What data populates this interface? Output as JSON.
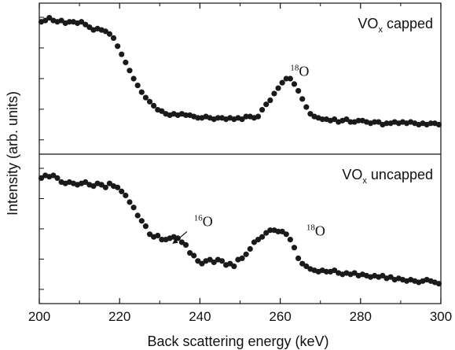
{
  "chart_data": {
    "type": "scatter",
    "xlabel": "Back scattering energy (keV)",
    "ylabel": "Intensity (arb. units)",
    "xlim": [
      200,
      300
    ],
    "x_ticks": [
      200,
      220,
      240,
      260,
      280,
      300
    ],
    "grid": false,
    "panels": [
      {
        "label": "VOx capped",
        "label_main": "VO",
        "label_sub": "x",
        "label_rest": " capped",
        "ylim": [
          0,
          1
        ],
        "annotations": [
          {
            "text_sup": "18",
            "text": "O",
            "x": 262.5,
            "y": 0.52
          }
        ],
        "x": [
          200.5,
          201.5,
          202.5,
          203.5,
          204.5,
          205.5,
          206.5,
          207.5,
          208.5,
          209.5,
          210.5,
          211.5,
          212.5,
          213.5,
          214.5,
          215.5,
          216.5,
          217.5,
          218.5,
          219.5,
          220.5,
          221.5,
          222.5,
          223.5,
          224.5,
          225.5,
          226.5,
          227.5,
          228.5,
          229.5,
          230.5,
          231.5,
          232.5,
          233.5,
          234.5,
          235.5,
          236.5,
          237.5,
          238.5,
          239.5,
          240.5,
          241.5,
          242.5,
          243.5,
          244.5,
          245.5,
          246.5,
          247.5,
          248.5,
          249.5,
          250.5,
          251.5,
          252.5,
          253.5,
          254.5,
          255.5,
          256.5,
          257.5,
          258.5,
          259.5,
          260.5,
          261.5,
          262.5,
          263.5,
          264.5,
          265.5,
          266.5,
          267.5,
          268.5,
          269.5,
          270.5,
          271.5,
          272.5,
          273.5,
          274.5,
          275.5,
          276.5,
          277.5,
          278.5,
          279.5,
          280.5,
          281.5,
          282.5,
          283.5,
          284.5,
          285.5,
          286.5,
          287.5,
          288.5,
          289.5,
          290.5,
          291.5,
          292.5,
          293.5,
          294.5,
          295.5,
          296.5,
          297.5,
          298.5,
          299.5
        ],
        "y": [
          0.92,
          0.93,
          0.95,
          0.93,
          0.92,
          0.93,
          0.91,
          0.92,
          0.92,
          0.91,
          0.92,
          0.9,
          0.88,
          0.86,
          0.87,
          0.86,
          0.85,
          0.83,
          0.8,
          0.74,
          0.68,
          0.62,
          0.56,
          0.5,
          0.45,
          0.4,
          0.36,
          0.33,
          0.3,
          0.27,
          0.26,
          0.24,
          0.23,
          0.24,
          0.23,
          0.24,
          0.23,
          0.23,
          0.22,
          0.21,
          0.21,
          0.22,
          0.21,
          0.2,
          0.21,
          0.21,
          0.2,
          0.21,
          0.2,
          0.21,
          0.2,
          0.22,
          0.22,
          0.21,
          0.22,
          0.27,
          0.31,
          0.34,
          0.39,
          0.43,
          0.47,
          0.5,
          0.5,
          0.46,
          0.41,
          0.35,
          0.29,
          0.24,
          0.22,
          0.21,
          0.2,
          0.2,
          0.19,
          0.2,
          0.18,
          0.19,
          0.2,
          0.18,
          0.18,
          0.19,
          0.19,
          0.18,
          0.17,
          0.18,
          0.18,
          0.16,
          0.17,
          0.17,
          0.18,
          0.17,
          0.18,
          0.17,
          0.18,
          0.17,
          0.16,
          0.17,
          0.16,
          0.17,
          0.17,
          0.16
        ]
      },
      {
        "label": "VOx uncapped",
        "label_main": "VO",
        "label_sub": "x",
        "label_rest": " uncapped",
        "ylim": [
          0,
          1
        ],
        "annotations": [
          {
            "text_sup": "16",
            "text": "O",
            "x": 238.5,
            "y": 0.52
          },
          {
            "text_sup": "18",
            "text": "O",
            "x": 266.5,
            "y": 0.45
          }
        ],
        "x": [
          200.5,
          201.5,
          202.5,
          203.5,
          204.5,
          205.5,
          206.5,
          207.5,
          208.5,
          209.5,
          210.5,
          211.5,
          212.5,
          213.5,
          214.5,
          215.5,
          216.5,
          217.5,
          218.5,
          219.5,
          220.5,
          221.5,
          222.5,
          223.5,
          224.5,
          225.5,
          226.5,
          227.5,
          228.5,
          229.5,
          230.5,
          231.5,
          232.5,
          233.5,
          234.5,
          235.5,
          236.5,
          237.5,
          238.5,
          239.5,
          240.5,
          241.5,
          242.5,
          243.5,
          244.5,
          245.5,
          246.5,
          247.5,
          248.5,
          249.5,
          250.5,
          251.5,
          252.5,
          253.5,
          254.5,
          255.5,
          256.5,
          257.5,
          258.5,
          259.5,
          260.5,
          261.5,
          262.5,
          263.5,
          264.5,
          265.5,
          266.5,
          267.5,
          268.5,
          269.5,
          270.5,
          271.5,
          272.5,
          273.5,
          274.5,
          275.5,
          276.5,
          277.5,
          278.5,
          279.5,
          280.5,
          281.5,
          282.5,
          283.5,
          284.5,
          285.5,
          286.5,
          287.5,
          288.5,
          289.5,
          290.5,
          291.5,
          292.5,
          293.5,
          294.5,
          295.5,
          296.5,
          297.5,
          298.5,
          299.5
        ],
        "y": [
          0.88,
          0.9,
          0.89,
          0.9,
          0.88,
          0.85,
          0.84,
          0.85,
          0.84,
          0.83,
          0.84,
          0.85,
          0.83,
          0.82,
          0.84,
          0.83,
          0.81,
          0.84,
          0.82,
          0.81,
          0.78,
          0.75,
          0.7,
          0.66,
          0.6,
          0.56,
          0.52,
          0.46,
          0.44,
          0.45,
          0.42,
          0.42,
          0.43,
          0.44,
          0.43,
          0.4,
          0.38,
          0.32,
          0.3,
          0.26,
          0.24,
          0.26,
          0.27,
          0.25,
          0.27,
          0.26,
          0.23,
          0.24,
          0.22,
          0.27,
          0.28,
          0.31,
          0.35,
          0.4,
          0.42,
          0.44,
          0.47,
          0.49,
          0.49,
          0.48,
          0.48,
          0.46,
          0.42,
          0.36,
          0.28,
          0.24,
          0.22,
          0.2,
          0.19,
          0.18,
          0.19,
          0.18,
          0.18,
          0.19,
          0.17,
          0.16,
          0.17,
          0.16,
          0.17,
          0.15,
          0.16,
          0.15,
          0.14,
          0.15,
          0.14,
          0.15,
          0.13,
          0.14,
          0.12,
          0.13,
          0.12,
          0.11,
          0.12,
          0.11,
          0.1,
          0.11,
          0.12,
          0.11,
          0.1,
          0.09
        ]
      }
    ]
  }
}
